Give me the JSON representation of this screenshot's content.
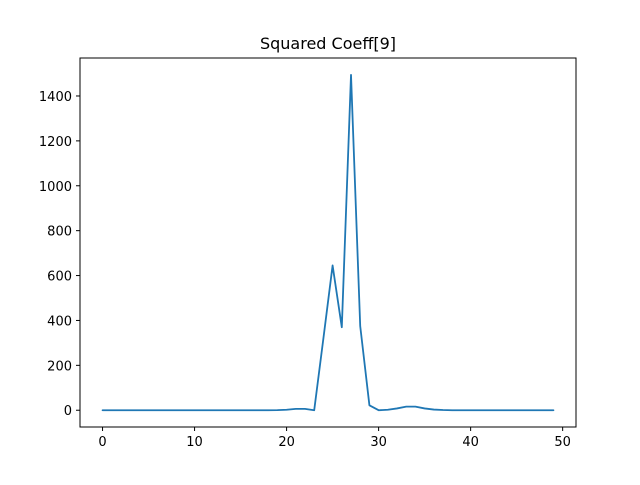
{
  "chart_data": {
    "type": "line",
    "title": "Squared Coeff[9]",
    "xlabel": "",
    "ylabel": "",
    "xlim": [
      -2.45,
      51.45
    ],
    "ylim": [
      -74.7,
      1569.2
    ],
    "xticks": [
      0,
      10,
      20,
      30,
      40,
      50
    ],
    "yticks": [
      0,
      200,
      400,
      600,
      800,
      1000,
      1200,
      1400
    ],
    "grid": false,
    "series": [
      {
        "color": "#1f77b4",
        "x": [
          0,
          1,
          2,
          3,
          4,
          5,
          6,
          7,
          8,
          9,
          10,
          11,
          12,
          13,
          14,
          15,
          16,
          17,
          18,
          19,
          20,
          21,
          22,
          23,
          24,
          25,
          26,
          27,
          28,
          29,
          30,
          31,
          32,
          33,
          34,
          35,
          36,
          37,
          38,
          39,
          40,
          41,
          42,
          43,
          44,
          45,
          46,
          47,
          48,
          49
        ],
        "y": [
          0,
          0,
          0,
          0,
          0,
          0,
          0,
          0,
          0,
          0,
          0,
          0,
          0,
          0,
          0,
          0,
          0,
          0,
          0,
          0.5,
          2,
          6,
          6,
          0,
          320,
          645,
          370,
          1494,
          375,
          22,
          0,
          2,
          8,
          16,
          16,
          8,
          3,
          1,
          0,
          0,
          0,
          0,
          0,
          0,
          0,
          0,
          0,
          0,
          0,
          0
        ]
      }
    ]
  }
}
